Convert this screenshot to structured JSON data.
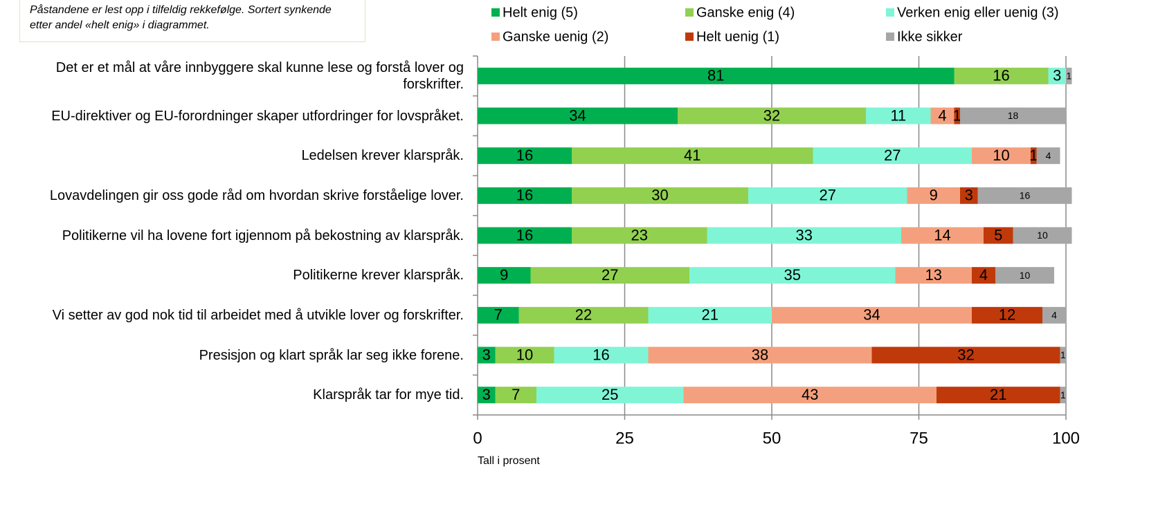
{
  "chart_data": {
    "type": "stacked-bar-horizontal",
    "note": "Påstandene er lest opp i tilfeldig rekkefølge. Sortert synkende etter andel «helt enig» i diagrammet.",
    "xlabel": "Tall i prosent",
    "categories": [
      "Det er et mål at våre innbyggere skal kunne lese og forstå lover og forskrifter.",
      "EU-direktiver og EU-forordninger skaper utfordringer for lovspråket.",
      "Ledelsen krever klarspråk.",
      "Lovavdelingen gir oss gode råd om hvordan skrive forståelige lover.",
      "Politikerne vil ha lovene fort igjennom på bekostning av klarspråk.",
      "Politikerne krever klarspråk.",
      "Vi setter av god nok tid til arbeidet med å utvikle lover og forskrifter.",
      "Presisjon og klart språk lar seg ikke forene.",
      "Klarspråk tar for mye tid."
    ],
    "series": [
      {
        "name": "Helt enig (5)",
        "color": "#00b050",
        "values": [
          81,
          34,
          16,
          16,
          16,
          9,
          7,
          3,
          3
        ]
      },
      {
        "name": "Ganske enig (4)",
        "color": "#92d050",
        "values": [
          16,
          32,
          41,
          30,
          23,
          27,
          22,
          10,
          7
        ]
      },
      {
        "name": "Verken enig eller uenig (3)",
        "color": "#7ff5d6",
        "values": [
          3,
          11,
          27,
          27,
          33,
          35,
          21,
          16,
          25
        ]
      },
      {
        "name": "Ganske uenig (2)",
        "color": "#f4a07e",
        "values": [
          null,
          4,
          10,
          9,
          14,
          13,
          34,
          38,
          43
        ]
      },
      {
        "name": "Helt uenig (1)",
        "color": "#c0390b",
        "values": [
          null,
          1,
          1,
          3,
          5,
          4,
          12,
          32,
          21
        ]
      },
      {
        "name": "Ikke sikker",
        "color": "#a6a6a6",
        "values": [
          1,
          18,
          4,
          16,
          10,
          10,
          4,
          1,
          1
        ]
      }
    ],
    "xlim": [
      0,
      100
    ],
    "xticks": [
      0,
      25,
      50,
      75,
      100
    ],
    "grid": true
  }
}
